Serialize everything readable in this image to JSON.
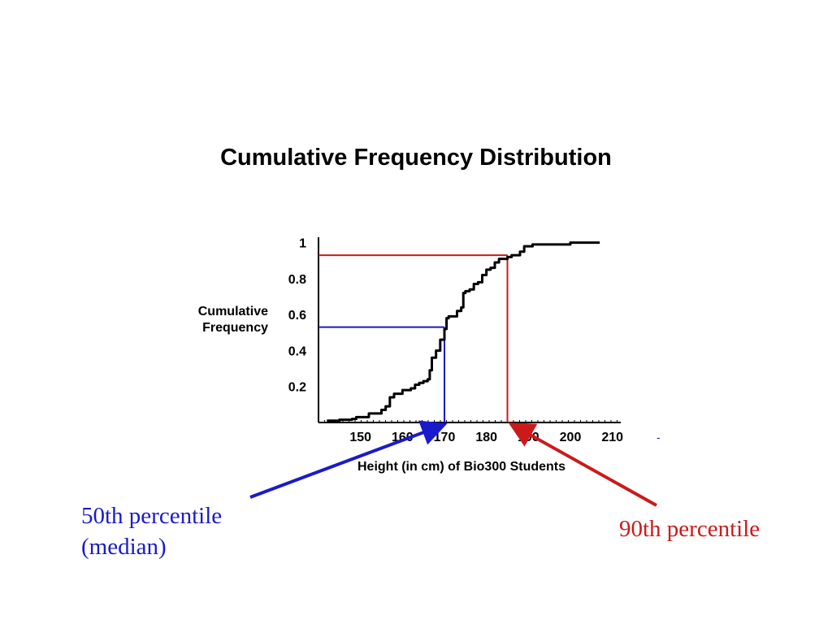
{
  "chart_data": {
    "type": "line",
    "title": "Cumulative Frequency Distribution",
    "ylabel_lines": [
      "Cumulative",
      "Frequency"
    ],
    "xlabel": "Height (in cm) of Bio300 Students",
    "x_ticks": [
      "150",
      "160",
      "170",
      "180",
      "190",
      "200",
      "210"
    ],
    "y_ticks": [
      "0.2",
      "0.4",
      "0.6",
      "0.8",
      "1"
    ],
    "xlim": [
      140,
      212
    ],
    "ylim": [
      0,
      1.03
    ],
    "series": [
      {
        "color": "#000000",
        "points": [
          [
            142,
            0.01
          ],
          [
            145,
            0.015
          ],
          [
            148,
            0.02
          ],
          [
            149,
            0.03
          ],
          [
            152,
            0.05
          ],
          [
            155,
            0.07
          ],
          [
            156,
            0.09
          ],
          [
            157,
            0.14
          ],
          [
            158,
            0.16
          ],
          [
            160,
            0.18
          ],
          [
            162,
            0.19
          ],
          [
            163,
            0.21
          ],
          [
            164,
            0.22
          ],
          [
            165,
            0.23
          ],
          [
            166,
            0.24
          ],
          [
            166.5,
            0.29
          ],
          [
            167,
            0.36
          ],
          [
            168,
            0.4
          ],
          [
            169,
            0.46
          ],
          [
            170,
            0.52
          ],
          [
            170.5,
            0.58
          ],
          [
            171,
            0.59
          ],
          [
            173,
            0.62
          ],
          [
            174,
            0.64
          ],
          [
            174.5,
            0.72
          ],
          [
            175,
            0.73
          ],
          [
            176,
            0.74
          ],
          [
            177,
            0.77
          ],
          [
            178,
            0.78
          ],
          [
            179,
            0.82
          ],
          [
            180,
            0.85
          ],
          [
            181,
            0.86
          ],
          [
            182,
            0.89
          ],
          [
            183,
            0.91
          ],
          [
            184,
            0.91
          ],
          [
            185,
            0.92
          ],
          [
            186,
            0.93
          ],
          [
            187,
            0.93
          ],
          [
            188,
            0.95
          ],
          [
            189,
            0.98
          ],
          [
            191,
            0.99
          ],
          [
            195,
            0.99
          ],
          [
            200,
            1.0
          ],
          [
            207,
            1.0
          ]
        ]
      }
    ],
    "markers": [
      {
        "label": "50th percentile",
        "x": 170,
        "y": 0.53,
        "color": "#1a1acc"
      },
      {
        "label": "90th percentile",
        "x": 185,
        "y": 0.93,
        "color": "#cc1a1a"
      }
    ]
  },
  "annotations": {
    "median": {
      "lines": [
        "50th percentile",
        "(median)"
      ],
      "color": "#1a1acc"
    },
    "p90": {
      "text": "90th percentile",
      "color": "#cc1a1a"
    },
    "stray_mark": "-"
  }
}
